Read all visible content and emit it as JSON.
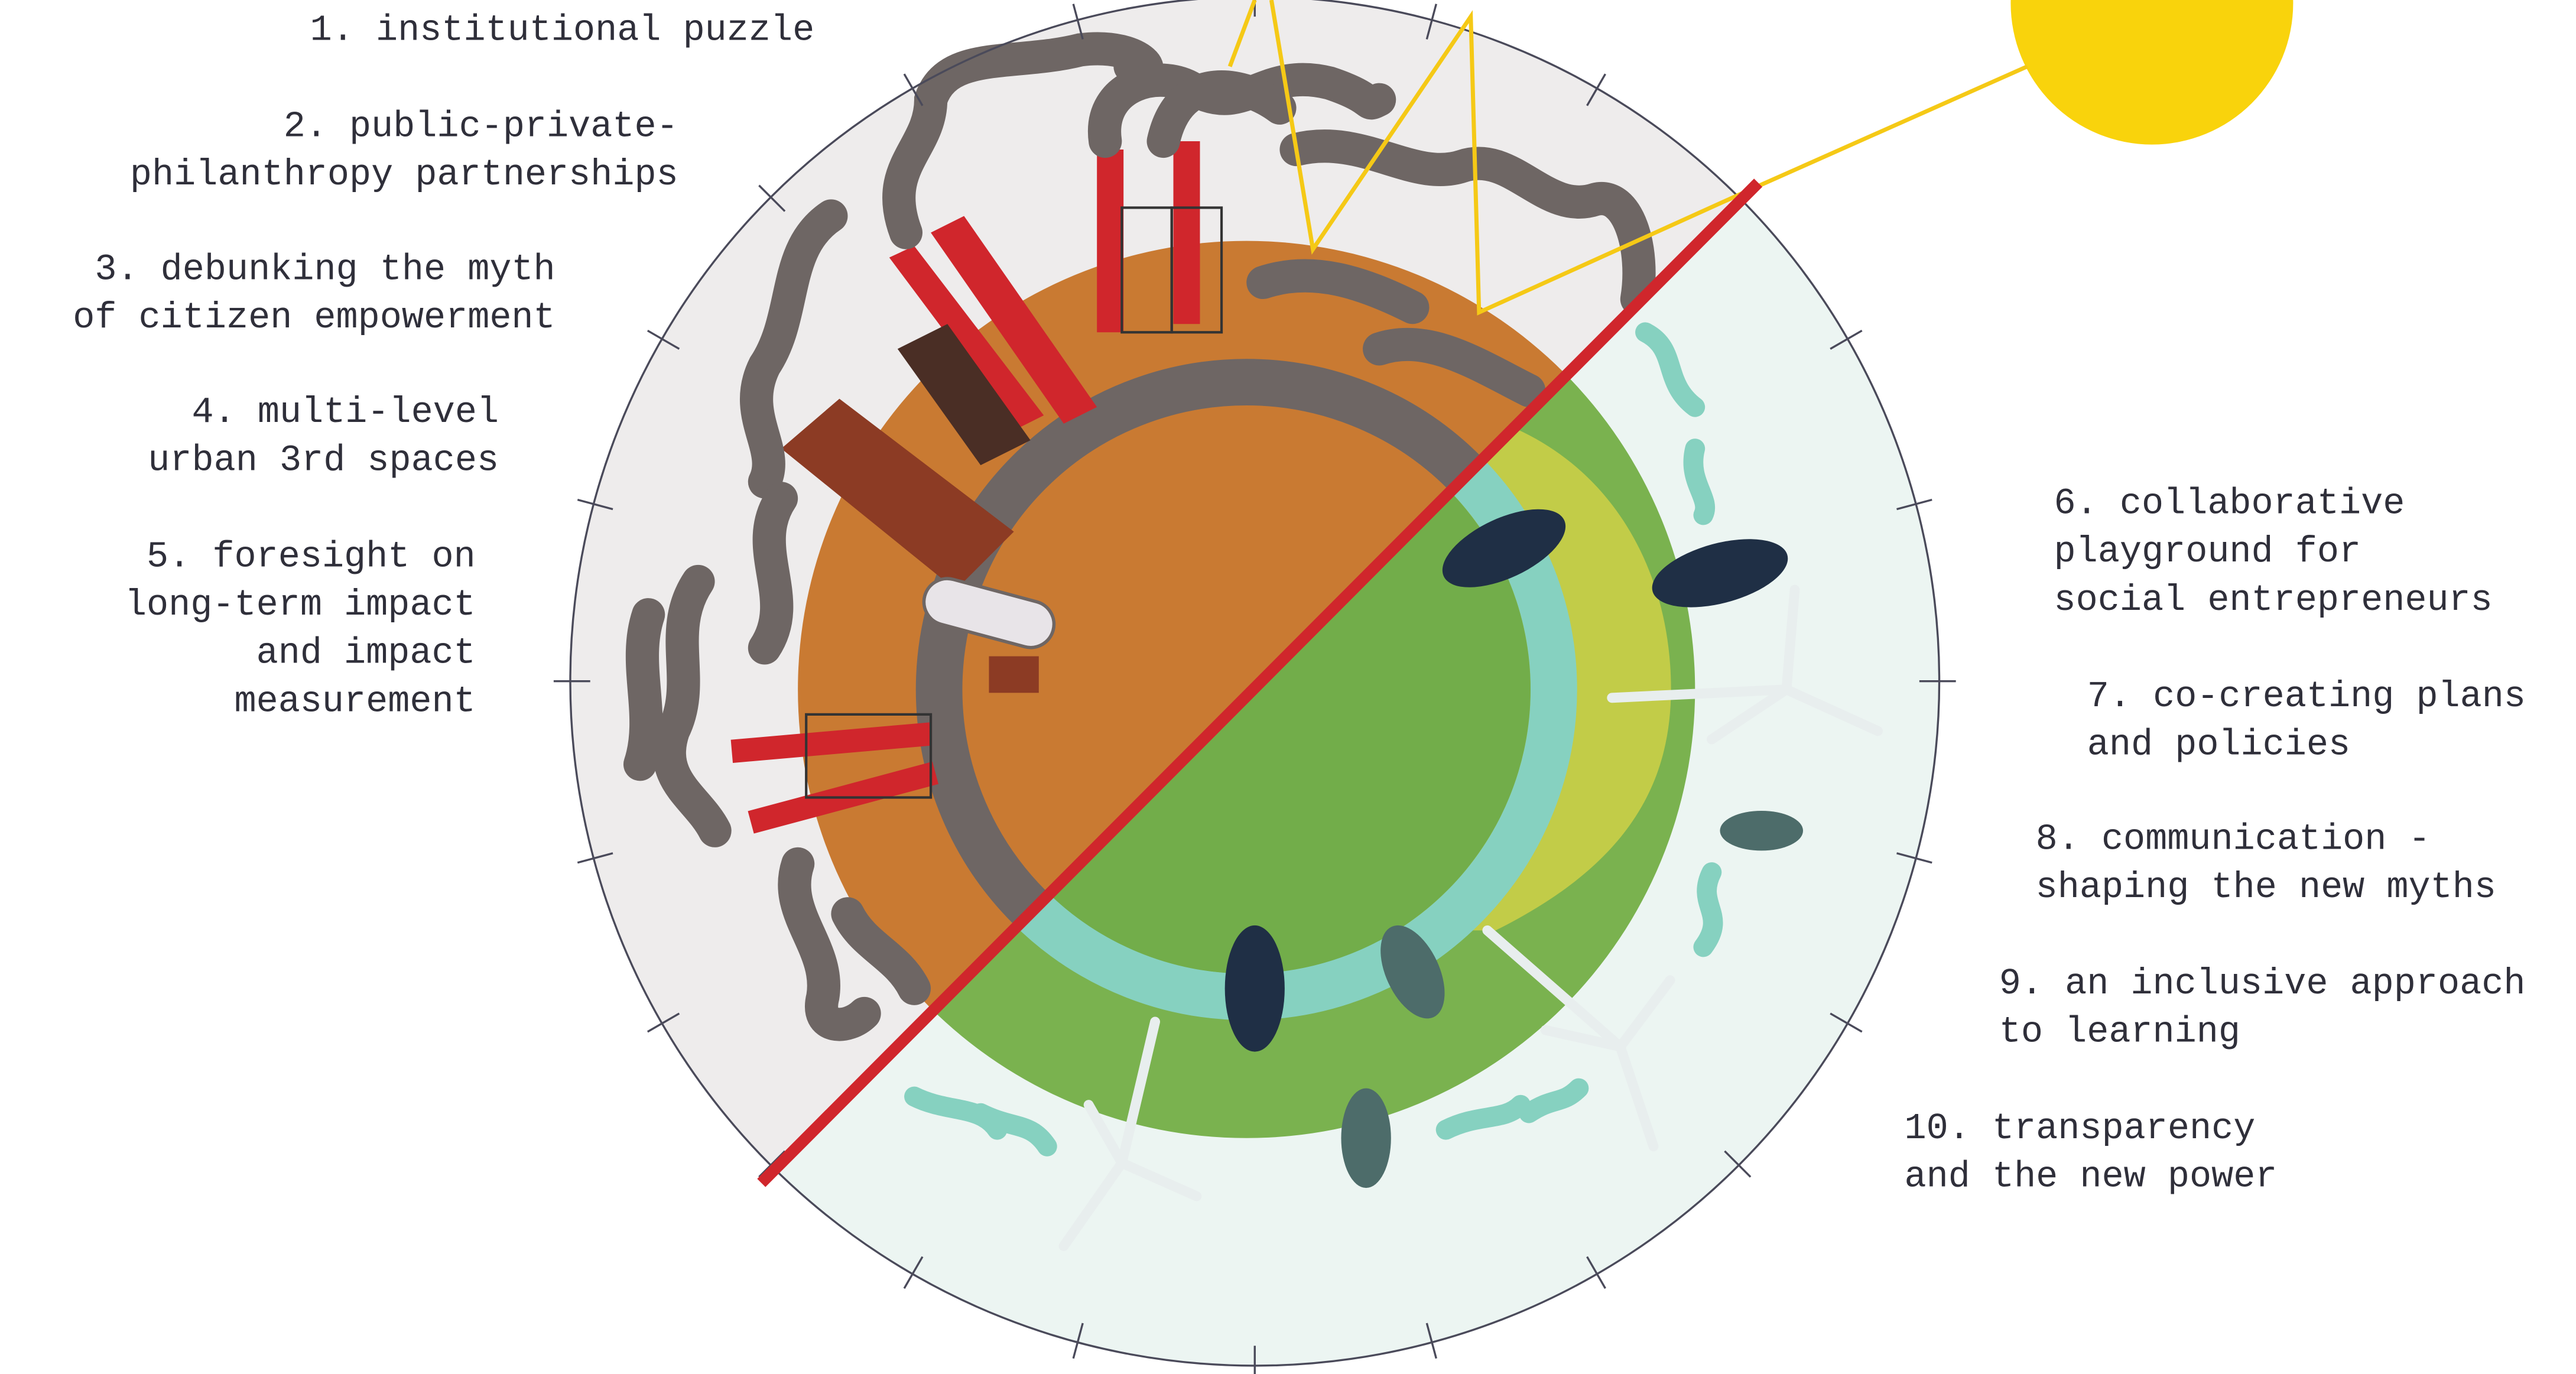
{
  "labels": [
    [
      "1. institutional puzzle"
    ],
    [
      "2. public-private-",
      "philanthropy partnerships"
    ],
    [
      "3. debunking the myth",
      "of citizen empowerment"
    ],
    [
      "4. multi-level",
      "urban 3rd spaces"
    ],
    [
      "5. foresight on",
      "long-term impact",
      "and impact",
      "measurement"
    ],
    [
      "6. collaborative",
      "playground for",
      "social entrepreneurs"
    ],
    [
      "7. co-creating plans",
      "and policies"
    ],
    [
      "8. communication -",
      "shaping the new myths"
    ],
    [
      "9. an inclusive approach",
      "to learning"
    ],
    [
      "10. transparency",
      "and the new power"
    ]
  ]
}
